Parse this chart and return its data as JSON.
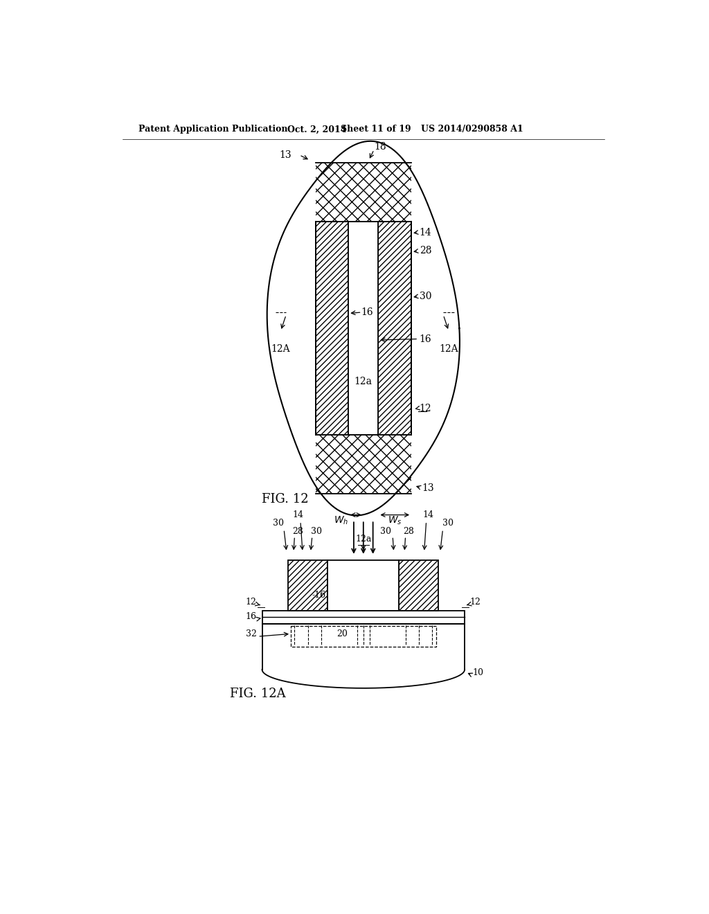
{
  "bg_color": "#ffffff",
  "line_color": "#000000",
  "header_text1": "Patent Application Publication",
  "header_text2": "Oct. 2, 2014",
  "header_text3": "Sheet 11 of 19",
  "header_text4": "US 2014/0290858 A1",
  "fig12_label": "FIG. 12",
  "fig12a_label": "FIG. 12A"
}
